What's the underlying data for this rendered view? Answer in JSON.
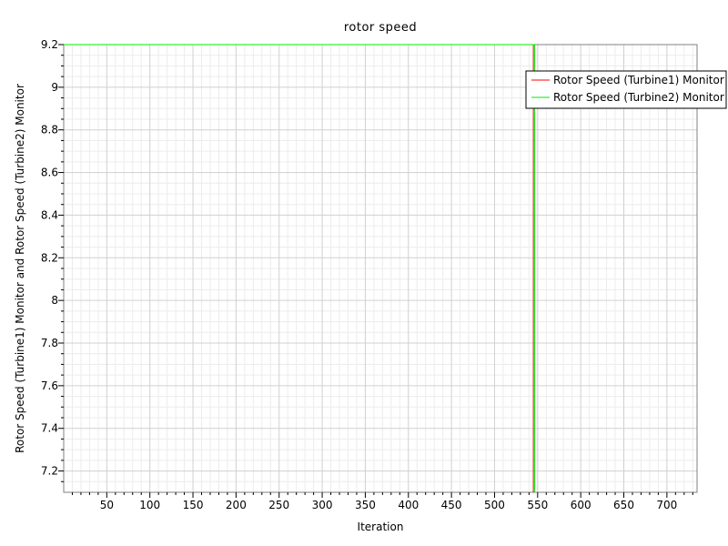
{
  "chart_data": {
    "type": "line",
    "title": "rotor speed",
    "xlabel": "Iteration",
    "ylabel": "Rotor Speed (Turbine1) Monitor and Rotor Speed (Turbine2) Monitor",
    "xlim": [
      0,
      735
    ],
    "ylim": [
      7.1,
      9.2
    ],
    "xticks": [
      50,
      100,
      150,
      200,
      250,
      300,
      350,
      400,
      450,
      500,
      550,
      600,
      650,
      700
    ],
    "yticks": [
      7.2,
      7.4,
      7.6,
      7.8,
      8.0,
      8.2,
      8.4,
      8.6,
      8.8,
      9.0,
      9.2
    ],
    "ytick_labels": [
      "7.2",
      "7.4",
      "7.6",
      "7.8",
      "8",
      "8.2",
      "8.4",
      "8.6",
      "8.8",
      "9",
      "9.2"
    ],
    "xtick_labels": [
      "50",
      "100",
      "150",
      "200",
      "250",
      "300",
      "350",
      "400",
      "450",
      "500",
      "550",
      "600",
      "650",
      "700"
    ],
    "grid": true,
    "legend_position": "top-right",
    "series": [
      {
        "name": "Rotor Speed (Turbine1) Monitor",
        "color": "#ff0000",
        "x": [
          0,
          545,
          545
        ],
        "y": [
          9.2,
          9.2,
          7.1
        ]
      },
      {
        "name": "Rotor Speed (Turbine2) Monitor",
        "color": "#00ee00",
        "x": [
          0,
          545,
          545
        ],
        "y": [
          9.2,
          9.2,
          7.1
        ]
      }
    ]
  }
}
